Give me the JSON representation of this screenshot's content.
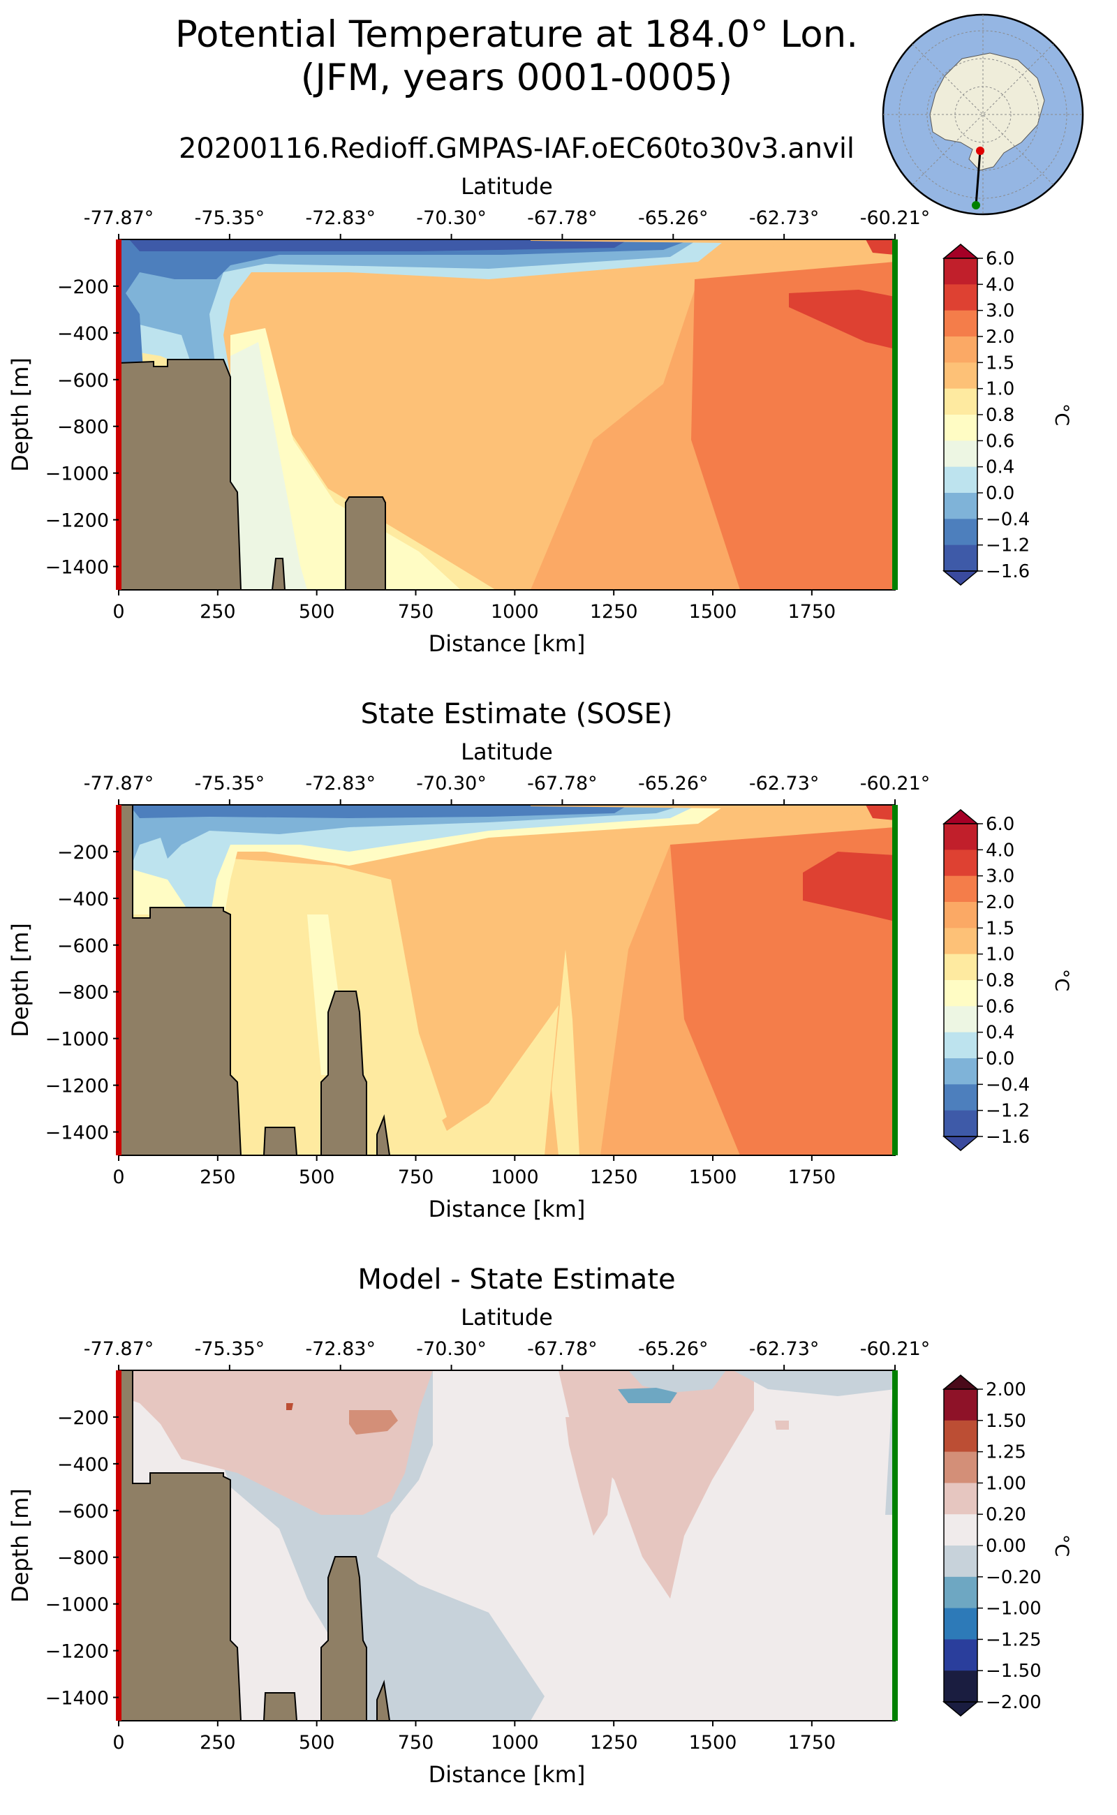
{
  "header": {
    "title_line1": "Potential Temperature at 184.0° Lon.",
    "title_line2": "(JFM, years 0001-0005)",
    "run_name": "20200116.Redioff.GMPAS-IAF.oEC60to30v3.anvil"
  },
  "colors": {
    "land": "#8f7f65",
    "left_edge": "#cc0000",
    "right_edge": "#008000",
    "temp_levels": [
      "#3a4a9e",
      "#3e5aa8",
      "#4d7fbd",
      "#7fb3d8",
      "#bde3ee",
      "#edf6e3",
      "#fffcc4",
      "#feeaa0",
      "#fdc177",
      "#fba965",
      "#f47d4a",
      "#de4132",
      "#c11f2b",
      "#a50026"
    ],
    "diff_levels": [
      "#1a1d40",
      "#2a3e9c",
      "#2d7ab8",
      "#6ea7c2",
      "#c7d2da",
      "#f0ebeb",
      "#e6c6c0",
      "#d38f78",
      "#bc4e34",
      "#8e1228",
      "#4a0a1a"
    ]
  },
  "chart_data": [
    {
      "type": "heatmap",
      "title": "",
      "xlabel": "Distance [km]",
      "ylabel": "Depth [m]",
      "top_axis_label": "Latitude",
      "top_ticks": [
        "-77.87°",
        "-75.35°",
        "-72.83°",
        "-70.30°",
        "-67.78°",
        "-65.26°",
        "-62.73°",
        "-60.21°"
      ],
      "xticks": [
        "0",
        "250",
        "500",
        "750",
        "1000",
        "1250",
        "1500",
        "1750"
      ],
      "xtick_values": [
        0,
        250,
        500,
        750,
        1000,
        1250,
        1500,
        1750
      ],
      "yticks": [
        "−200",
        "−400",
        "−600",
        "−800",
        "−1000",
        "−1200",
        "−1400"
      ],
      "ytick_values": [
        -200,
        -400,
        -600,
        -800,
        -1000,
        -1200,
        -1400
      ],
      "xlim": [
        0,
        1960
      ],
      "ylim": [
        -1500,
        0
      ],
      "colorbar": {
        "label": "°C",
        "levels": [
          "6.0",
          "4.0",
          "3.0",
          "2.0",
          "1.5",
          "1.0",
          "0.8",
          "0.6",
          "0.4",
          "0.0",
          "−0.4",
          "−1.2",
          "−1.6"
        ]
      }
    },
    {
      "type": "heatmap",
      "title": "State Estimate (SOSE)",
      "xlabel": "Distance [km]",
      "ylabel": "Depth [m]",
      "top_axis_label": "Latitude",
      "top_ticks": [
        "-77.87°",
        "-75.35°",
        "-72.83°",
        "-70.30°",
        "-67.78°",
        "-65.26°",
        "-62.73°",
        "-60.21°"
      ],
      "xticks": [
        "0",
        "250",
        "500",
        "750",
        "1000",
        "1250",
        "1500",
        "1750"
      ],
      "xtick_values": [
        0,
        250,
        500,
        750,
        1000,
        1250,
        1500,
        1750
      ],
      "yticks": [
        "−200",
        "−400",
        "−600",
        "−800",
        "−1000",
        "−1200",
        "−1400"
      ],
      "ytick_values": [
        -200,
        -400,
        -600,
        -800,
        -1000,
        -1200,
        -1400
      ],
      "xlim": [
        0,
        1960
      ],
      "ylim": [
        -1500,
        0
      ],
      "colorbar": {
        "label": "°C",
        "levels": [
          "6.0",
          "4.0",
          "3.0",
          "2.0",
          "1.5",
          "1.0",
          "0.8",
          "0.6",
          "0.4",
          "0.0",
          "−0.4",
          "−1.2",
          "−1.6"
        ]
      }
    },
    {
      "type": "heatmap",
      "title": "Model - State Estimate",
      "xlabel": "Distance [km]",
      "ylabel": "Depth [m]",
      "top_axis_label": "Latitude",
      "top_ticks": [
        "-77.87°",
        "-75.35°",
        "-72.83°",
        "-70.30°",
        "-67.78°",
        "-65.26°",
        "-62.73°",
        "-60.21°"
      ],
      "xticks": [
        "0",
        "250",
        "500",
        "750",
        "1000",
        "1250",
        "1500",
        "1750"
      ],
      "xtick_values": [
        0,
        250,
        500,
        750,
        1000,
        1250,
        1500,
        1750
      ],
      "yticks": [
        "−200",
        "−400",
        "−600",
        "−800",
        "−1000",
        "−1200",
        "−1400"
      ],
      "ytick_values": [
        -200,
        -400,
        -600,
        -800,
        -1000,
        -1200,
        -1400
      ],
      "xlim": [
        0,
        1960
      ],
      "ylim": [
        -1500,
        0
      ],
      "colorbar": {
        "label": "°C",
        "levels": [
          "2.00",
          "1.50",
          "1.25",
          "1.00",
          "0.20",
          "0.00",
          "−0.20",
          "−1.00",
          "−1.25",
          "−1.50",
          "−2.00"
        ]
      }
    }
  ]
}
